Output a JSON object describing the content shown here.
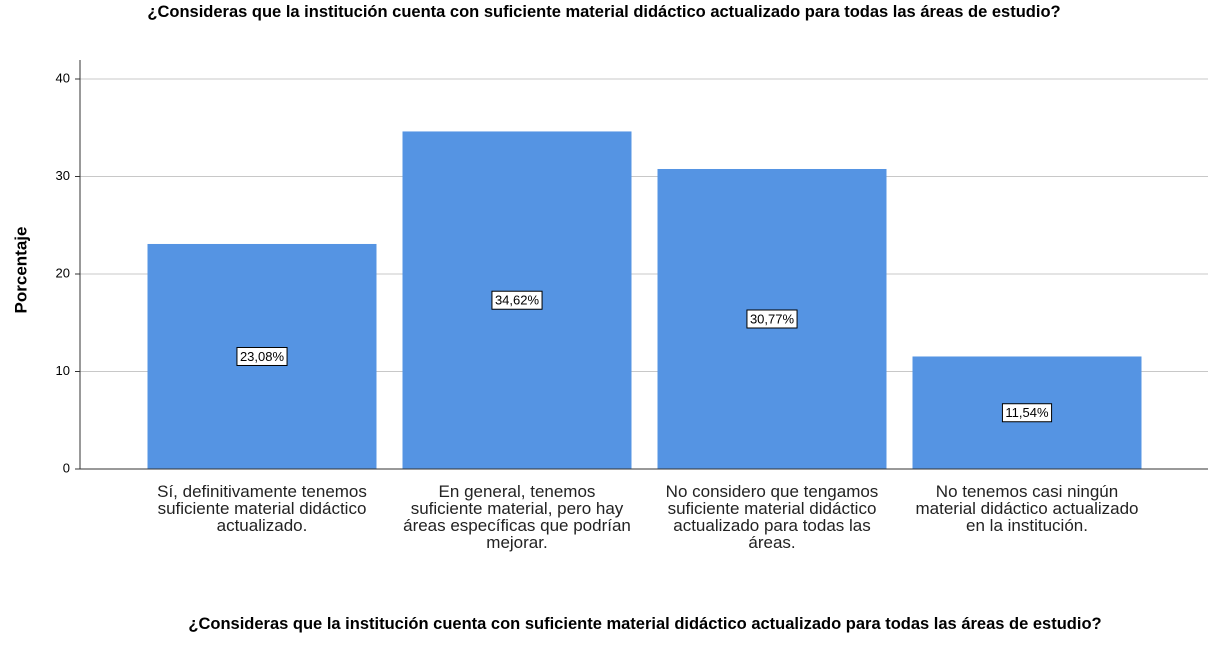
{
  "chart_data": {
    "type": "bar",
    "title": "¿Consideras que la institución cuenta con suficiente material didáctico actualizado para todas las áreas de estudio?",
    "x_label": "¿Consideras que la institución cuenta con suficiente material didáctico actualizado para todas las áreas de estudio?",
    "y_label": "Porcentaje",
    "categories": [
      "Sí, definitivamente tenemos suficiente material didáctico actualizado.",
      "En general, tenemos suficiente material, pero hay áreas específicas que podrían mejorar.",
      "No considero que tengamos suficiente material didáctico actualizado para todas las áreas.",
      "No tenemos casi ningún material didáctico actualizado en la institución."
    ],
    "values": [
      23.08,
      34.62,
      30.77,
      11.54
    ],
    "value_labels": [
      "23,08%",
      "34,62%",
      "30,77%",
      "11,54%"
    ],
    "color": "#5594e3",
    "ylim": [
      0,
      40
    ],
    "yticks": [
      0,
      10,
      20,
      30,
      40
    ],
    "grid": true
  }
}
